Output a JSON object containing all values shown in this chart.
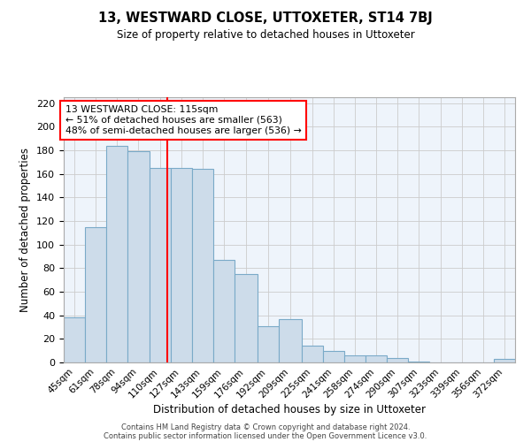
{
  "title": "13, WESTWARD CLOSE, UTTOXETER, ST14 7BJ",
  "subtitle": "Size of property relative to detached houses in Uttoxeter",
  "xlabel": "Distribution of detached houses by size in Uttoxeter",
  "ylabel": "Number of detached properties",
  "bar_labels": [
    "45sqm",
    "61sqm",
    "78sqm",
    "94sqm",
    "110sqm",
    "127sqm",
    "143sqm",
    "159sqm",
    "176sqm",
    "192sqm",
    "209sqm",
    "225sqm",
    "241sqm",
    "258sqm",
    "274sqm",
    "290sqm",
    "307sqm",
    "323sqm",
    "339sqm",
    "356sqm",
    "372sqm"
  ],
  "bar_values": [
    38,
    115,
    184,
    179,
    165,
    165,
    164,
    87,
    75,
    31,
    37,
    14,
    10,
    6,
    6,
    4,
    1,
    0,
    0,
    0,
    3
  ],
  "bin_edges": [
    37.5,
    53.5,
    69.5,
    85.5,
    101.5,
    117.5,
    133.5,
    149.5,
    165.5,
    182.5,
    198.5,
    215.5,
    231.5,
    247.5,
    263.5,
    279.5,
    295.5,
    311.5,
    327.5,
    343.5,
    359.5,
    375.5
  ],
  "bar_color": "#cddcea",
  "bar_edge_color": "#7aaac8",
  "vline_x": 115,
  "vline_color": "red",
  "annotation_text": "13 WESTWARD CLOSE: 115sqm\n← 51% of detached houses are smaller (563)\n48% of semi-detached houses are larger (536) →",
  "annotation_box_color": "white",
  "annotation_box_edge": "red",
  "ylim": [
    0,
    225
  ],
  "yticks": [
    0,
    20,
    40,
    60,
    80,
    100,
    120,
    140,
    160,
    180,
    200,
    220
  ],
  "grid_color": "#cccccc",
  "bg_color": "#eef4fb",
  "footer1": "Contains HM Land Registry data © Crown copyright and database right 2024.",
  "footer2": "Contains public sector information licensed under the Open Government Licence v3.0."
}
